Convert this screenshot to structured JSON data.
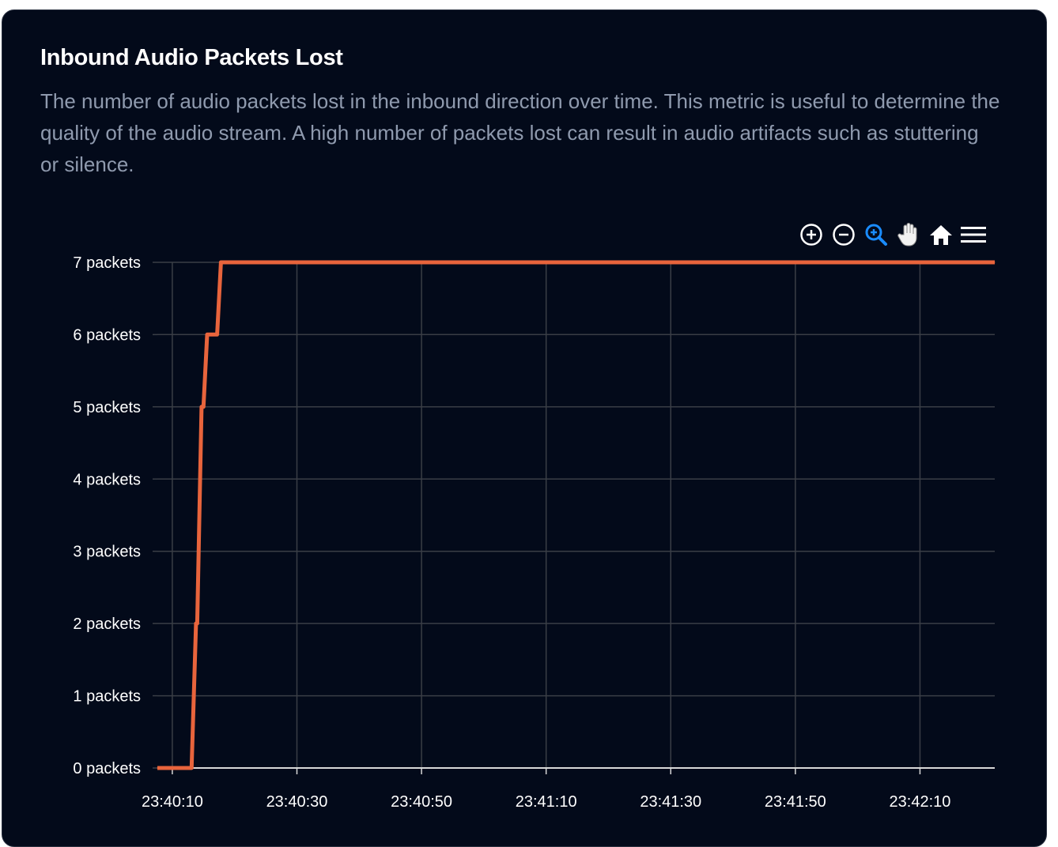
{
  "card": {
    "title": "Inbound Audio Packets Lost",
    "description": "The number of audio packets lost in the inbound direction over time. This metric is useful to determine the quality of the audio stream. A high number of packets lost can result in audio artifacts such as stuttering or silence."
  },
  "toolbar": {
    "buttons": [
      {
        "name": "zoom-in-icon",
        "active": false
      },
      {
        "name": "zoom-out-icon",
        "active": false
      },
      {
        "name": "selection-zoom-icon",
        "active": true
      },
      {
        "name": "pan-hand-icon",
        "active": false
      },
      {
        "name": "reset-home-icon",
        "active": false
      },
      {
        "name": "menu-icon",
        "active": false
      }
    ],
    "active_color": "#1a8cff",
    "icon_color": "#ffffff"
  },
  "colors": {
    "background": "#030a1a",
    "series": "#e8643c",
    "grid": "#3a3e46",
    "axis": "#d8d8d8"
  },
  "chart_data": {
    "type": "line",
    "title": "",
    "xlabel": "",
    "ylabel": "",
    "x_ticks": [
      "23:40:10",
      "23:40:30",
      "23:40:50",
      "23:41:10",
      "23:41:30",
      "23:41:50",
      "23:42:10"
    ],
    "y_ticks": [
      "0 packets",
      "1 packets",
      "2 packets",
      "3 packets",
      "4 packets",
      "5 packets",
      "6 packets",
      "7 packets"
    ],
    "xlim": [
      "23:40:07.6",
      "23:42:22"
    ],
    "ylim": [
      0,
      7
    ],
    "grid": true,
    "series": [
      {
        "color": "#e8643c",
        "points": [
          [
            "23:40:07.6",
            0
          ],
          [
            "23:40:13.1",
            0
          ],
          [
            "23:40:13.8",
            2
          ],
          [
            "23:40:14.0",
            2
          ],
          [
            "23:40:14.7",
            5
          ],
          [
            "23:40:15.0",
            5
          ],
          [
            "23:40:15.6",
            6
          ],
          [
            "23:40:17.2",
            6
          ],
          [
            "23:40:17.8",
            7
          ],
          [
            "23:42:22",
            7
          ]
        ]
      }
    ]
  }
}
